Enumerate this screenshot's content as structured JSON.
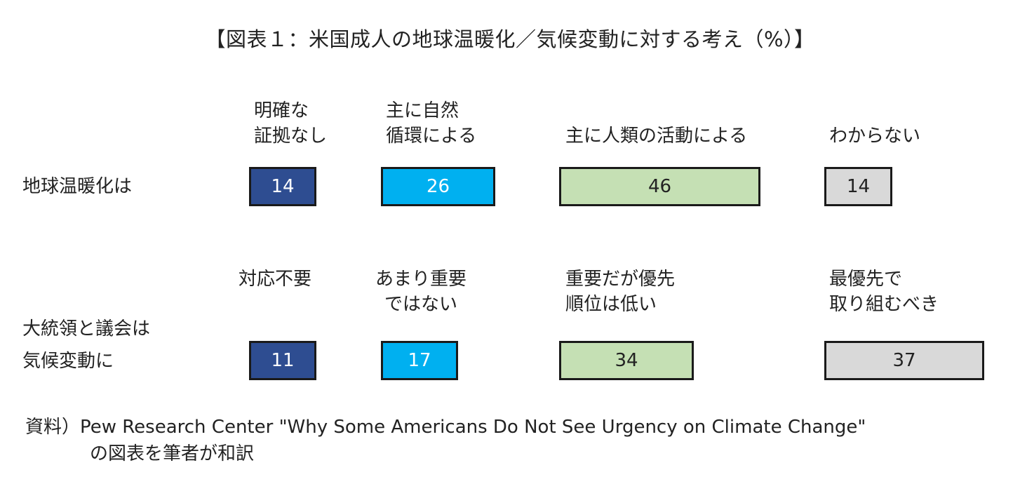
{
  "chart_data": {
    "type": "table",
    "title": "【図表１：米国成人の地球温暖化／気候変動に対する考え（%）】",
    "rows": [
      {
        "label": [
          "地球温暖化は"
        ],
        "categories": [
          [
            "明確な",
            "証拠なし"
          ],
          [
            "主に自然",
            "循環による"
          ],
          [
            "主に人類の活動による"
          ],
          [
            "わからない"
          ]
        ],
        "values": [
          14,
          26,
          46,
          14
        ]
      },
      {
        "label": [
          "大統領と議会は",
          "気候変動に"
        ],
        "categories": [
          [
            "対応不要"
          ],
          [
            "あまり重要",
            "ではない"
          ],
          [
            "重要だが優先",
            "順位は低い"
          ],
          [
            "最優先で",
            "取り組むべき"
          ]
        ],
        "values": [
          11,
          17,
          34,
          37
        ]
      }
    ],
    "colors": [
      "#2e4d91",
      "#00b0f0",
      "#c5e0b4",
      "#d9d9d9"
    ],
    "text_colors": [
      "#ffffff",
      "#ffffff",
      "#222222",
      "#222222"
    ],
    "source": [
      "資料）Pew Research Center \"Why Some Americans Do Not See Urgency on Climate Change\"",
      "の図表を筆者が和訳"
    ]
  }
}
